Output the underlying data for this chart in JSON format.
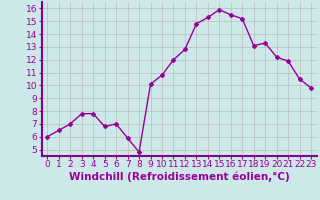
{
  "x": [
    0,
    1,
    2,
    3,
    4,
    5,
    6,
    7,
    8,
    9,
    10,
    11,
    12,
    13,
    14,
    15,
    16,
    17,
    18,
    19,
    20,
    21,
    22,
    23
  ],
  "y": [
    6.0,
    6.5,
    7.0,
    7.8,
    7.8,
    6.8,
    7.0,
    5.9,
    4.8,
    10.1,
    10.8,
    12.0,
    12.8,
    14.8,
    15.3,
    15.9,
    15.5,
    15.2,
    13.1,
    13.3,
    12.2,
    11.9,
    10.5,
    9.8
  ],
  "line_color": "#990099",
  "marker": "D",
  "marker_size": 2,
  "ylim": [
    4.5,
    16.5
  ],
  "xlim": [
    -0.5,
    23.5
  ],
  "yticks": [
    5,
    6,
    7,
    8,
    9,
    10,
    11,
    12,
    13,
    14,
    15,
    16
  ],
  "xticks": [
    0,
    1,
    2,
    3,
    4,
    5,
    6,
    7,
    8,
    9,
    10,
    11,
    12,
    13,
    14,
    15,
    16,
    17,
    18,
    19,
    20,
    21,
    22,
    23
  ],
  "bg_color": "#cce8e8",
  "grid_color": "#bbbbbb",
  "tick_label_fontsize": 6.5,
  "xlabel": "Windchill (Refroidissement éolien,°C)",
  "xlabel_fontsize": 7.5,
  "line_width": 1.0,
  "spine_color": "#880088"
}
